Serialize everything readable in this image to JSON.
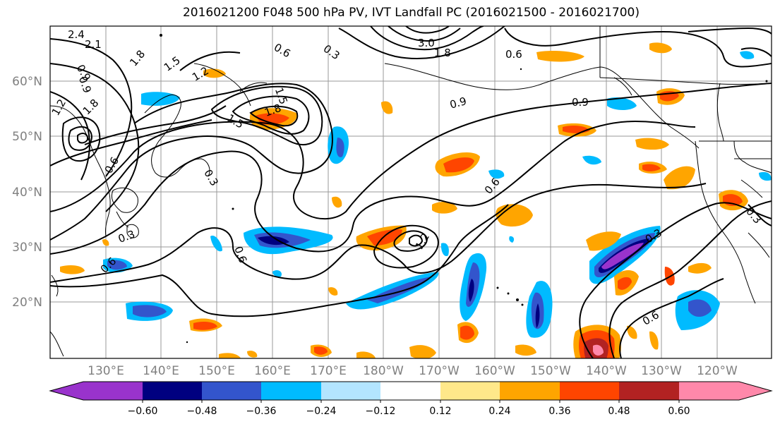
{
  "title": "2016021200 F048 500 hPa PV, IVT Landfall PC (2016021500 - 2016021700)",
  "lat_labels": [
    "60°N",
    "50°N",
    "40°N",
    "30°N",
    "20°N"
  ],
  "lon_labels": [
    "130°E",
    "140°E",
    "150°E",
    "160°E",
    "170°E",
    "180°W",
    "170°W",
    "160°W",
    "150°W",
    "140°W",
    "130°W",
    "120°W"
  ],
  "colorbar": {
    "ticks": [
      "−0.60",
      "−0.48",
      "−0.36",
      "−0.24",
      "−0.12",
      "0.12",
      "0.24",
      "0.36",
      "0.48",
      "0.60"
    ],
    "colors": [
      "#9933cc",
      "#000080",
      "#3355cc",
      "#00bbff",
      "#b3e5ff",
      "#ffffff",
      "#ffe88a",
      "#ffa500",
      "#ff4500",
      "#b22222",
      "#ff88aa"
    ]
  },
  "contour_labels": [
    "2.4",
    "2.1",
    "1.8",
    "1.5",
    "1.2",
    "0.9",
    "1.8",
    "1.2",
    "0.9",
    "1.5",
    "1.8",
    "1.5",
    "0.6",
    "0.3",
    "3.0",
    "1.8",
    "0.6",
    "0.9",
    "0.9",
    "0.3",
    "0.6",
    "0.6",
    "0.3",
    "1.2",
    "0.6",
    "0.6",
    "0.3",
    "0.3",
    "0.6"
  ]
}
